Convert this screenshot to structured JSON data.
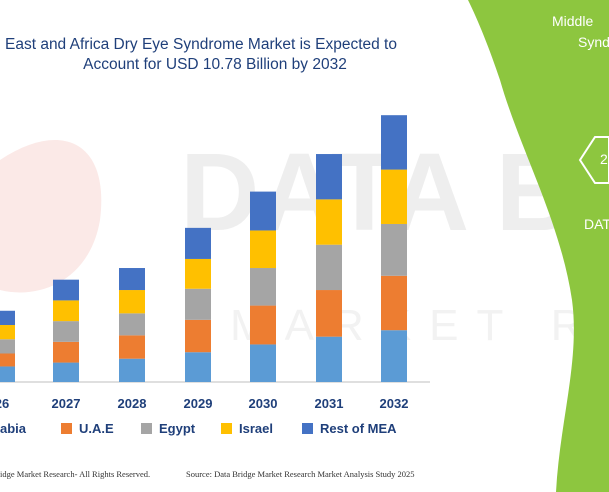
{
  "title_line1": "East and Africa Dry Eye Syndrome Market is Expected to",
  "title_line2": "Account for USD 10.78 Billion by 2032",
  "panel": {
    "title_line1": "Middle",
    "title_line2": "Synd",
    "hex_text": "2",
    "brand_text": "DAT"
  },
  "footer": {
    "left": "idge Market Research- All Rights Reserved.",
    "right": "Source: Data Bridge Market Research Market Analysis Study 2025"
  },
  "colors": {
    "saudi_arabia": "#5b9bd5",
    "uae": "#ed7d31",
    "egypt": "#a5a5a5",
    "israel": "#ffc000",
    "rest_of_mea": "#4472c4",
    "panel_green": "#8dc63f"
  },
  "chart_data": {
    "type": "bar",
    "stacked": true,
    "categories": [
      "26",
      "2027",
      "2028",
      "2029",
      "2030",
      "2031",
      "2032"
    ],
    "series": [
      {
        "name": "abia",
        "color": "#5b9bd5",
        "values": [
          1.2,
          1.5,
          1.8,
          2.3,
          2.9,
          3.5,
          4.0
        ]
      },
      {
        "name": "U.A.E",
        "color": "#ed7d31",
        "values": [
          1.0,
          1.6,
          1.8,
          2.5,
          3.0,
          3.6,
          4.2
        ]
      },
      {
        "name": "Egypt",
        "color": "#a5a5a5",
        "values": [
          1.1,
          1.6,
          1.7,
          2.4,
          2.9,
          3.5,
          4.0
        ]
      },
      {
        "name": "Israel",
        "color": "#ffc000",
        "values": [
          1.1,
          1.6,
          1.8,
          2.3,
          2.9,
          3.5,
          4.2
        ]
      },
      {
        "name": "Rest of MEA",
        "color": "#4472c4",
        "values": [
          1.1,
          1.6,
          1.7,
          2.4,
          3.0,
          3.5,
          4.2
        ]
      }
    ],
    "ylim": [
      0,
      21
    ],
    "grid": false,
    "legend_position": "bottom"
  }
}
